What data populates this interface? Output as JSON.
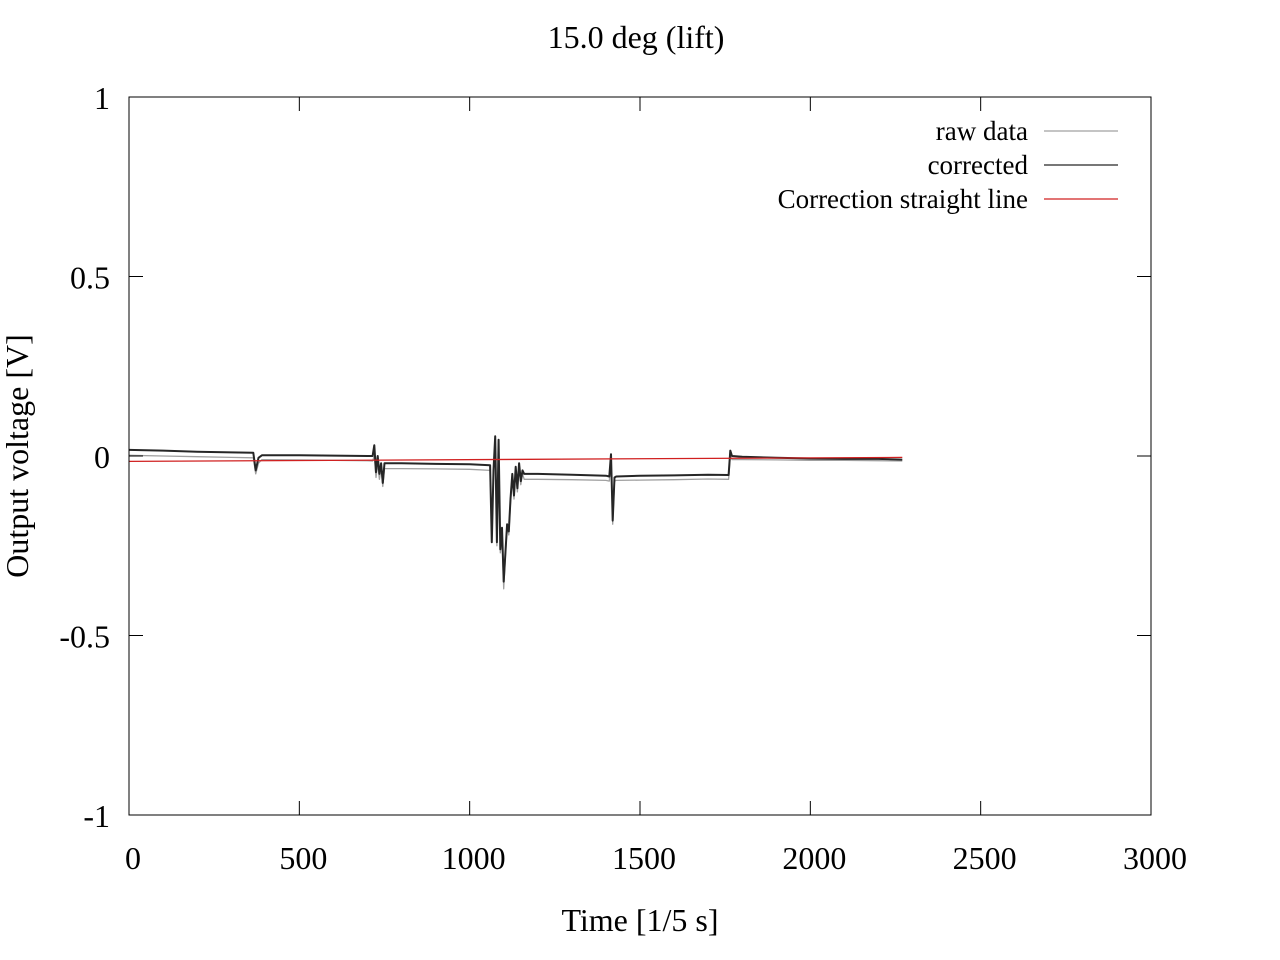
{
  "chart_data": {
    "type": "line",
    "title": "15.0 deg (lift)",
    "xlabel": "Time [1/5 s]",
    "ylabel": "Output voltage [V]",
    "xlim": [
      0,
      3000
    ],
    "ylim": [
      -1,
      1
    ],
    "x_ticks": [
      0,
      500,
      1000,
      1500,
      2000,
      2500,
      3000
    ],
    "x_tick_labels": [
      "0",
      "500",
      "1000",
      "1500",
      "2000",
      "2500",
      "3000"
    ],
    "y_ticks": [
      1,
      0.5,
      0,
      -0.5,
      -1
    ],
    "y_tick_labels": [
      "1",
      "0.5",
      "0",
      "-0.5",
      "-1"
    ],
    "grid": false,
    "legend_position": "top-right",
    "series": [
      {
        "name": "raw data",
        "color": "#a0a0a0",
        "x": [
          0,
          100,
          200,
          300,
          365,
          372,
          380,
          390,
          400,
          500,
          600,
          700,
          715,
          720,
          725,
          730,
          735,
          740,
          745,
          750,
          760,
          800,
          900,
          1000,
          1060,
          1065,
          1070,
          1075,
          1080,
          1085,
          1090,
          1095,
          1100,
          1105,
          1110,
          1115,
          1120,
          1125,
          1130,
          1135,
          1140,
          1145,
          1150,
          1155,
          1160,
          1200,
          1300,
          1400,
          1410,
          1415,
          1420,
          1425,
          1430,
          1500,
          1600,
          1700,
          1760,
          1765,
          1770,
          1800,
          1900,
          2000,
          2100,
          2200,
          2270
        ],
        "y": [
          0.002,
          0.0,
          -0.002,
          -0.004,
          -0.005,
          -0.05,
          -0.02,
          -0.01,
          -0.01,
          -0.011,
          -0.012,
          -0.013,
          -0.014,
          0.0,
          -0.06,
          -0.02,
          -0.065,
          -0.035,
          -0.085,
          -0.035,
          -0.035,
          -0.035,
          -0.036,
          -0.037,
          -0.04,
          -0.22,
          -0.05,
          0.04,
          -0.25,
          0.03,
          -0.27,
          -0.22,
          -0.37,
          -0.28,
          -0.2,
          -0.22,
          -0.13,
          -0.06,
          -0.12,
          -0.04,
          -0.1,
          -0.03,
          -0.08,
          -0.05,
          -0.065,
          -0.065,
          -0.066,
          -0.068,
          -0.07,
          0.0,
          -0.19,
          -0.07,
          -0.068,
          -0.067,
          -0.066,
          -0.064,
          -0.065,
          0.0,
          -0.01,
          -0.01,
          -0.011,
          -0.012,
          -0.012,
          -0.013,
          -0.014
        ]
      },
      {
        "name": "corrected",
        "color": "#262626",
        "x": [
          0,
          100,
          200,
          300,
          365,
          372,
          380,
          390,
          400,
          500,
          600,
          700,
          715,
          720,
          725,
          730,
          735,
          740,
          745,
          750,
          760,
          800,
          900,
          1000,
          1060,
          1065,
          1070,
          1075,
          1080,
          1085,
          1090,
          1095,
          1100,
          1105,
          1110,
          1115,
          1120,
          1125,
          1130,
          1135,
          1140,
          1145,
          1150,
          1155,
          1160,
          1200,
          1300,
          1400,
          1410,
          1415,
          1420,
          1425,
          1430,
          1500,
          1600,
          1700,
          1760,
          1765,
          1770,
          1800,
          1900,
          2000,
          2100,
          2200,
          2270
        ],
        "y": [
          0.017,
          0.015,
          0.012,
          0.01,
          0.009,
          -0.04,
          -0.005,
          0.002,
          0.002,
          0.002,
          0.001,
          0.0,
          0.0,
          0.03,
          -0.045,
          0.0,
          -0.05,
          -0.02,
          -0.075,
          -0.02,
          -0.02,
          -0.02,
          -0.022,
          -0.023,
          -0.026,
          -0.24,
          -0.04,
          0.055,
          -0.24,
          0.045,
          -0.26,
          -0.2,
          -0.35,
          -0.27,
          -0.19,
          -0.21,
          -0.12,
          -0.05,
          -0.11,
          -0.03,
          -0.09,
          -0.02,
          -0.07,
          -0.04,
          -0.05,
          -0.05,
          -0.052,
          -0.055,
          -0.057,
          0.005,
          -0.18,
          -0.06,
          -0.057,
          -0.055,
          -0.054,
          -0.052,
          -0.053,
          0.015,
          0.0,
          -0.002,
          -0.005,
          -0.007,
          -0.008,
          -0.008,
          -0.01
        ]
      },
      {
        "name": "Correction straight line",
        "color": "#d02020",
        "x": [
          0,
          2270
        ],
        "y": [
          -0.015,
          -0.004
        ]
      }
    ]
  }
}
